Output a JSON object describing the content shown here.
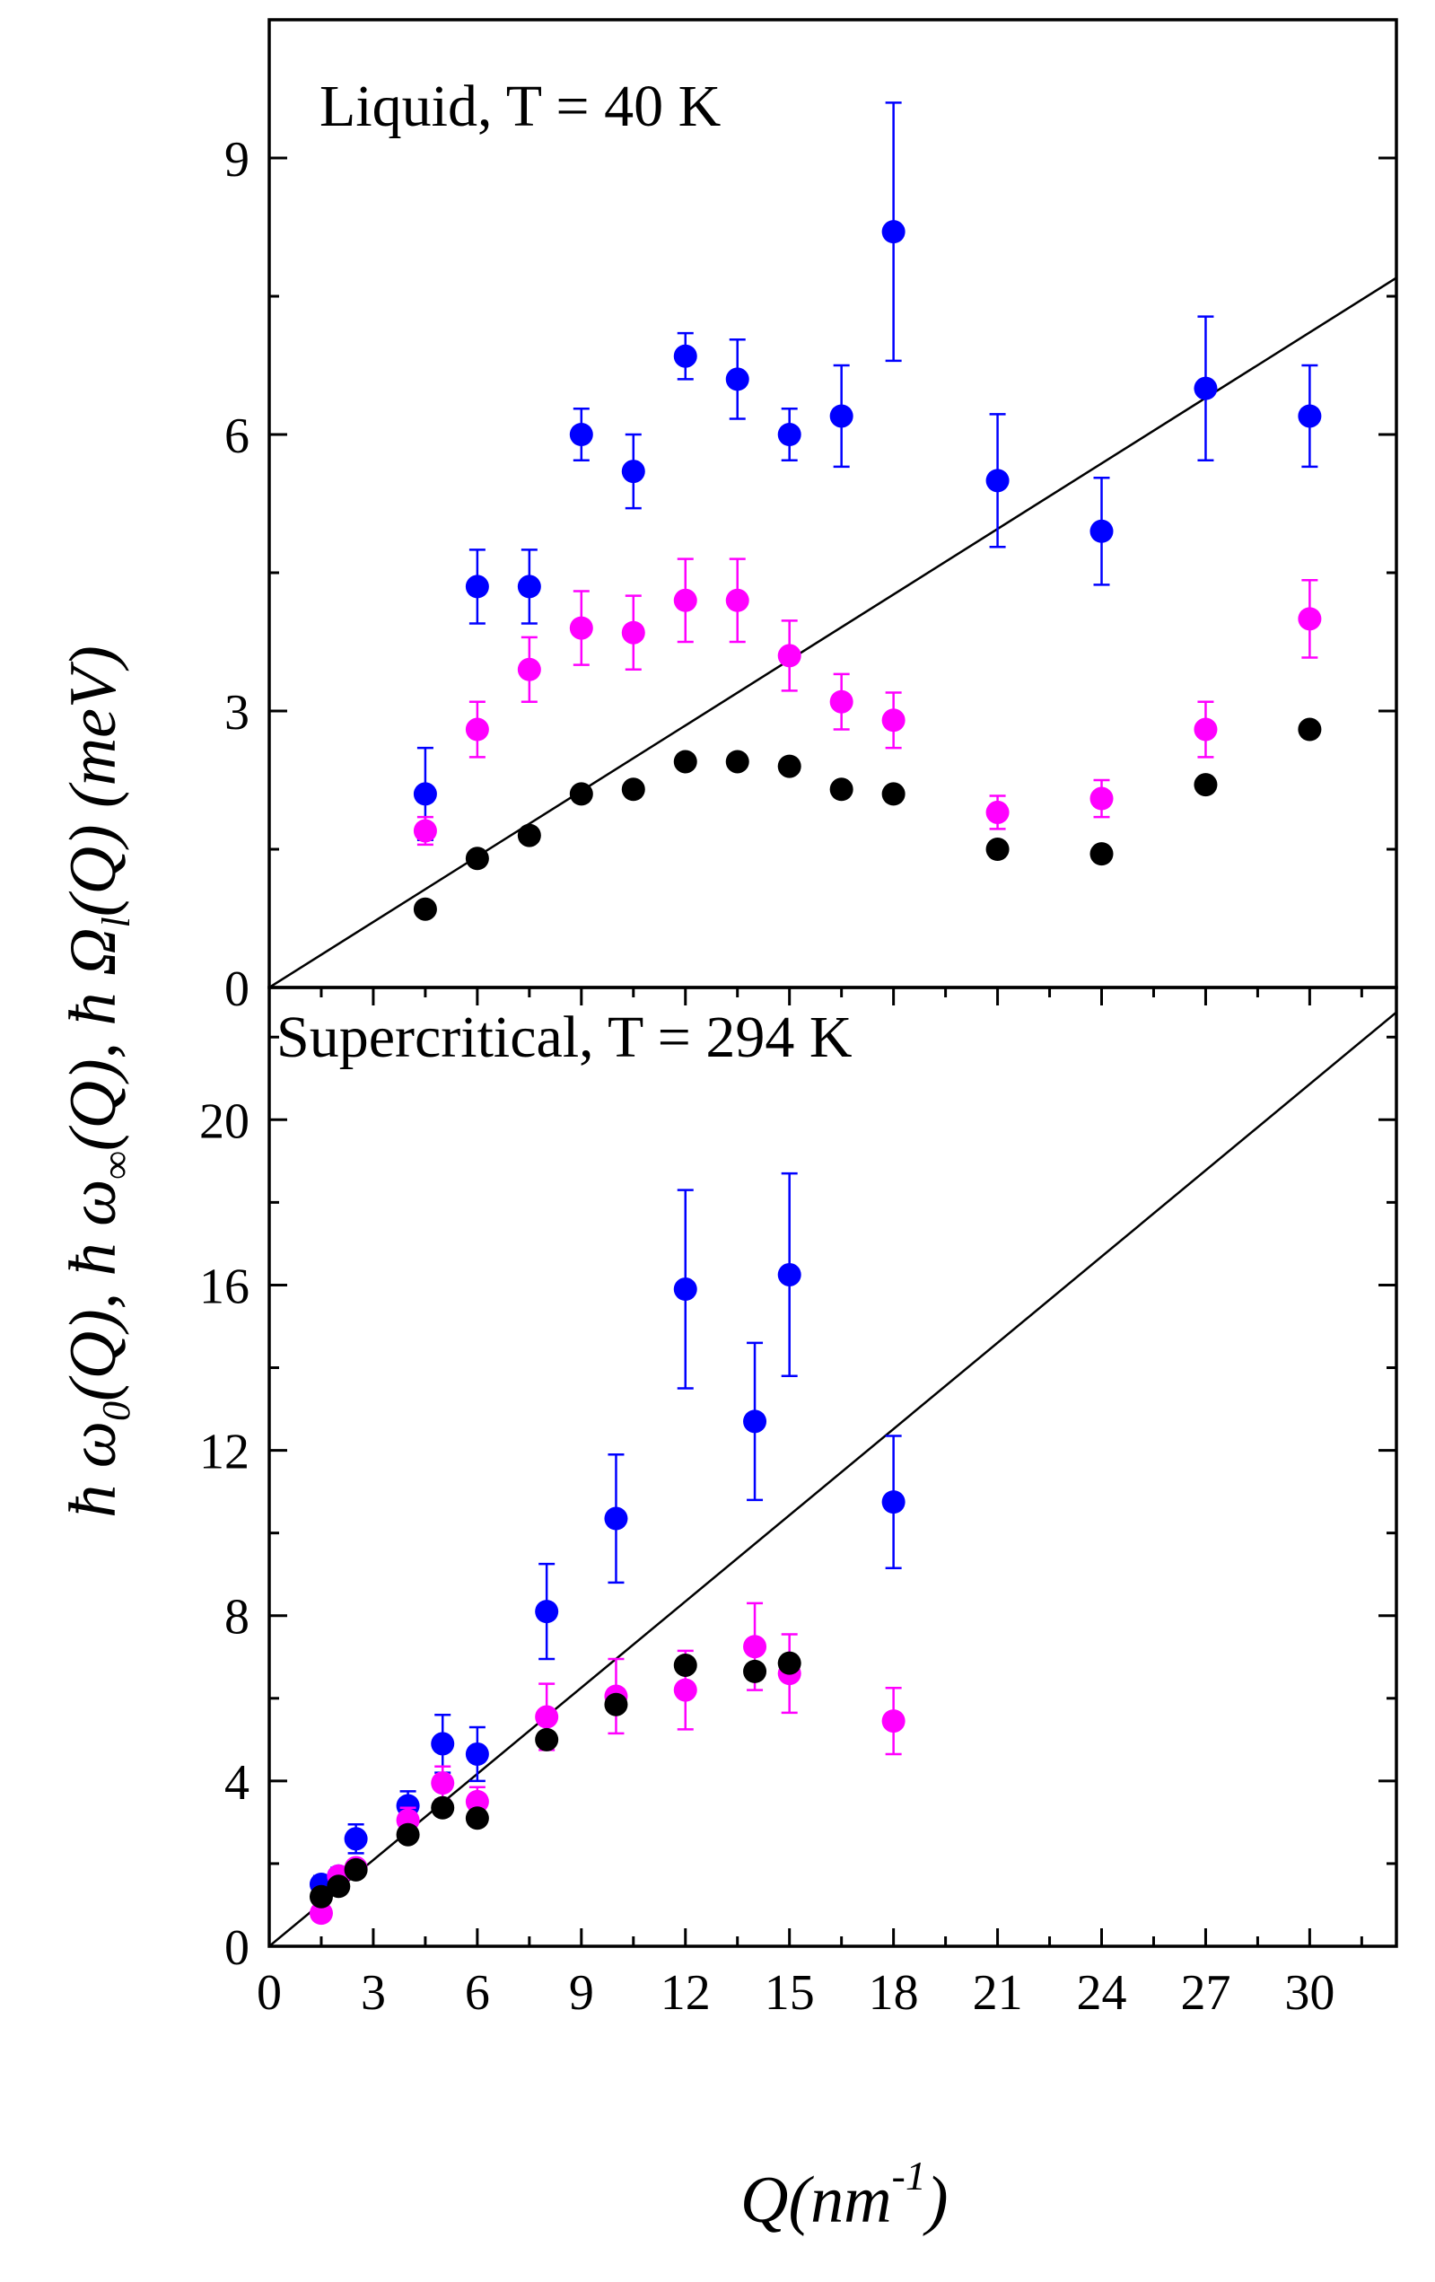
{
  "chart_data": [
    {
      "type": "scatter",
      "panel": "top",
      "title": "Liquid, T = 40 K",
      "xlabel": "Q(nm-1)",
      "ylabel": "ħ ω0(Q), ħ ω∞(Q), ħ Ωl(Q) (meV)",
      "xlim": [
        0,
        32.5
      ],
      "ylim": [
        0,
        10.5
      ],
      "yticks": [
        0,
        3,
        6,
        9
      ],
      "grid": false,
      "series": [
        {
          "name": "blue (ħω∞)",
          "color": "#0000ff",
          "x": [
            4.5,
            6,
            7.5,
            9,
            10.5,
            12,
            13.5,
            15,
            16.5,
            18,
            21,
            24,
            27,
            30
          ],
          "y": [
            2.1,
            4.35,
            4.35,
            6.0,
            5.6,
            6.85,
            6.6,
            6.0,
            6.2,
            8.2,
            5.5,
            4.95,
            6.5,
            6.2
          ],
          "err": [
            0.5,
            0.4,
            0.4,
            0.28,
            0.4,
            0.25,
            0.43,
            0.28,
            0.55,
            1.4,
            0.72,
            0.58,
            0.78,
            0.55
          ]
        },
        {
          "name": "magenta (ħΩl)",
          "color": "#ff00ff",
          "x": [
            4.5,
            6,
            7.5,
            9,
            10.5,
            12,
            13.5,
            15,
            16.5,
            18,
            21,
            24,
            27,
            30
          ],
          "y": [
            1.7,
            2.8,
            3.45,
            3.9,
            3.85,
            4.2,
            4.2,
            3.6,
            3.1,
            2.9,
            1.9,
            2.05,
            2.8,
            4.0
          ],
          "err": [
            0.15,
            0.3,
            0.35,
            0.4,
            0.4,
            0.45,
            0.45,
            0.38,
            0.3,
            0.3,
            0.18,
            0.2,
            0.3,
            0.42
          ]
        },
        {
          "name": "black (ħω0)",
          "color": "#000000",
          "x": [
            4.5,
            6,
            7.5,
            9,
            10.5,
            12,
            13.5,
            15,
            16.5,
            18,
            21,
            24,
            27,
            30
          ],
          "y": [
            0.85,
            1.4,
            1.65,
            2.1,
            2.15,
            2.45,
            2.45,
            2.4,
            2.15,
            2.1,
            1.5,
            1.45,
            2.2,
            2.8
          ],
          "err": []
        }
      ],
      "line": {
        "x": [
          0,
          32.5
        ],
        "y": [
          0,
          7.7
        ]
      }
    },
    {
      "type": "scatter",
      "panel": "bottom",
      "title": "Supercritical, T = 294 K",
      "xlabel": "Q(nm-1)",
      "xlim": [
        0,
        32.5
      ],
      "ylim": [
        0,
        23.2
      ],
      "xticks": [
        0,
        3,
        6,
        9,
        12,
        15,
        18,
        21,
        24,
        27,
        30
      ],
      "yticks": [
        0,
        4,
        8,
        12,
        16,
        20
      ],
      "grid": false,
      "series": [
        {
          "name": "blue (ħω∞)",
          "color": "#0000ff",
          "x": [
            1.5,
            2,
            2.5,
            4,
            5,
            6,
            8,
            10,
            12,
            14,
            15,
            18
          ],
          "y": [
            1.5,
            1.7,
            2.6,
            3.4,
            4.9,
            4.65,
            8.1,
            10.35,
            15.9,
            12.7,
            16.25,
            10.75
          ],
          "err": [
            0.2,
            0.2,
            0.35,
            0.35,
            0.7,
            0.65,
            1.15,
            1.55,
            2.4,
            1.9,
            2.45,
            1.6
          ]
        },
        {
          "name": "magenta (ħΩl)",
          "color": "#ff00ff",
          "x": [
            1.5,
            2,
            2.5,
            4,
            5,
            6,
            8,
            10,
            12,
            14,
            15,
            18
          ],
          "y": [
            0.8,
            1.7,
            1.9,
            3.05,
            3.95,
            3.5,
            5.55,
            6.05,
            6.2,
            7.25,
            6.6,
            5.45
          ],
          "err": [
            0.1,
            0.15,
            0.15,
            0.3,
            0.4,
            0.35,
            0.8,
            0.9,
            0.95,
            1.05,
            0.95,
            0.8
          ]
        },
        {
          "name": "black (ħω0)",
          "color": "#000000",
          "x": [
            1.5,
            2,
            2.5,
            4,
            5,
            6,
            8,
            10,
            12,
            14,
            15
          ],
          "y": [
            1.2,
            1.45,
            1.85,
            2.7,
            3.35,
            3.1,
            5.0,
            5.85,
            6.8,
            6.65,
            6.85
          ],
          "err": []
        }
      ],
      "line": {
        "x": [
          0,
          32.5
        ],
        "y": [
          0,
          22.6
        ]
      }
    }
  ],
  "labels": {
    "top_title": "Liquid, T = 40 K",
    "bottom_title": "Supercritical, T = 294 K",
    "xaxis": {
      "base": "Q(nm",
      "sup": "-1",
      "close": ")"
    },
    "yaxis": {
      "p1": "ħ ω",
      "s1": "0",
      "p2": "(Q), ħ ω",
      "s2": "∞",
      "p3": "(Q), ħ Ω",
      "s3": "l",
      "p4": "(Q) (meV)"
    }
  }
}
